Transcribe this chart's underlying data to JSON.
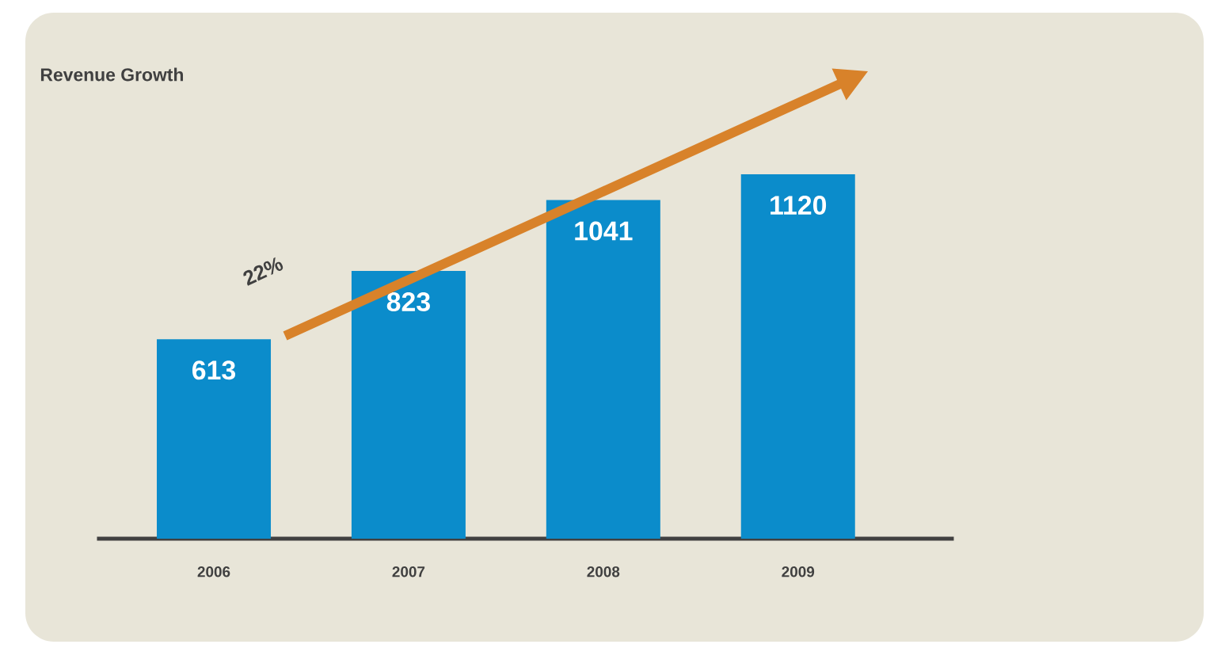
{
  "chart_data": {
    "type": "bar",
    "title": "Revenue Growth",
    "categories": [
      "2006",
      "2007",
      "2008",
      "2009"
    ],
    "values": [
      613,
      823,
      1041,
      1120
    ],
    "color": "#0b8ccb",
    "data_labels": true,
    "annotations": [
      "22%"
    ]
  }
}
